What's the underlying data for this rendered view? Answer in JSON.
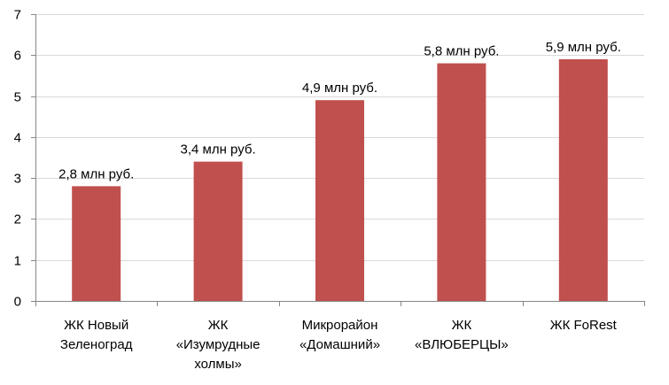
{
  "chart_data": {
    "type": "bar",
    "categories": [
      [
        "ЖК Новый",
        "Зеленоград"
      ],
      [
        "ЖК",
        "«Изумрудные",
        "холмы»"
      ],
      [
        "Микрорайон",
        "«Домашний»"
      ],
      [
        "ЖК",
        "«ВЛЮБЕРЦЫ»"
      ],
      [
        "ЖК FoRest"
      ]
    ],
    "values": [
      2.8,
      3.4,
      4.9,
      5.8,
      5.9
    ],
    "data_labels": [
      "2,8 млн руб.",
      "3,4 млн руб.",
      "4,9 млн руб.",
      "5,8 млн руб.",
      "5,9 млн руб."
    ],
    "y_ticks": [
      0,
      1,
      2,
      3,
      4,
      5,
      6,
      7
    ],
    "ylim": [
      0,
      7
    ],
    "bar_color": "#c0504d",
    "gridlines": true,
    "legend": "none",
    "title": "",
    "xlabel": "",
    "ylabel": ""
  }
}
